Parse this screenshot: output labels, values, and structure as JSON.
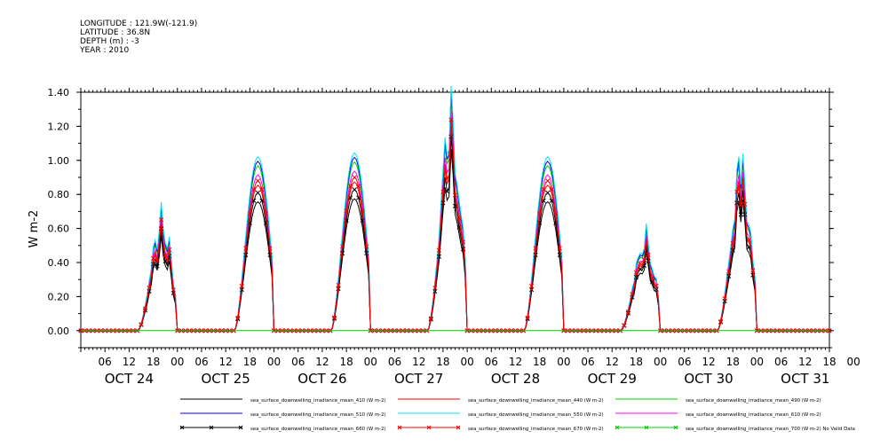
{
  "meta": {
    "longitude": "LONGITUDE : 121.9W(-121.9)",
    "latitude": "LATITUDE : 36.8N",
    "depth": "DEPTH (m) : -3",
    "year": "YEAR : 2010"
  },
  "chart_data": {
    "type": "line",
    "title": "",
    "xlabel": "",
    "ylabel": "W m-2",
    "ylim": [
      -0.1,
      1.4
    ],
    "xlim_hours": [
      0,
      186
    ],
    "y_ticks": [
      "0.00",
      "0.20",
      "0.40",
      "0.60",
      "0.80",
      "1.00",
      "1.20",
      "1.40"
    ],
    "y_tick_values": [
      0,
      0.2,
      0.4,
      0.6,
      0.8,
      1.0,
      1.2,
      1.4
    ],
    "x_hour_labels": [
      "06",
      "12",
      "18",
      "00",
      "06",
      "12",
      "18",
      "00",
      "06",
      "12",
      "18",
      "00",
      "06",
      "12",
      "18",
      "00",
      "06",
      "12",
      "18",
      "00",
      "06",
      "12",
      "18",
      "00",
      "06",
      "12",
      "18",
      "00",
      "06",
      "12",
      "18",
      "00"
    ],
    "x_day_labels": [
      "OCT 24",
      "OCT 25",
      "OCT 26",
      "OCT 27",
      "OCT 28",
      "OCT 29",
      "OCT 30",
      "OCT 31"
    ],
    "grid": false,
    "legend_position": "bottom",
    "daily_peaks": [
      {
        "day": "OCT 24",
        "peak": 0.62
      },
      {
        "day": "OCT 25",
        "peak": 0.88
      },
      {
        "day": "OCT 26",
        "peak": 0.9
      },
      {
        "day": "OCT 27",
        "peak": 1.2
      },
      {
        "day": "OCT 28",
        "peak": 0.88
      },
      {
        "day": "OCT 29",
        "peak": 0.53
      },
      {
        "day": "OCT 30",
        "peak": 0.9
      }
    ],
    "series": [
      {
        "name": "sea_surface_downwelling_irradiance_mean_410 (W m-2)",
        "color": "#000000",
        "scale": 0.86,
        "marker": ""
      },
      {
        "name": "sea_surface_downwelling_irradiance_mean_440 (W m-2)",
        "color": "#ff0000",
        "scale": 0.97,
        "marker": ""
      },
      {
        "name": "sea_surface_downwelling_irradiance_mean_490 (W m-2)",
        "color": "#00cc00",
        "scale": 1.1,
        "marker": ""
      },
      {
        "name": "sea_surface_downwelling_irradiance_mean_510 (W m-2)",
        "color": "#0000ff",
        "scale": 1.13,
        "marker": ""
      },
      {
        "name": "sea_surface_downwelling_irradiance_mean_550 (W m-2)",
        "color": "#00e5ee",
        "scale": 1.16,
        "marker": ""
      },
      {
        "name": "sea_surface_downwelling_irradiance_mean_610 (W m-2)",
        "color": "#ff00ff",
        "scale": 1.04,
        "marker": ""
      },
      {
        "name": "sea_surface_downwelling_irradiance_mean_660 (W m-2)",
        "color": "#000000",
        "scale": 0.92,
        "marker": "x"
      },
      {
        "name": "sea_surface_downwelling_irradiance_mean_670 (W m-2)",
        "color": "#ff0000",
        "scale": 1.0,
        "marker": "x"
      },
      {
        "name": "sea_surface_downwelling_irradiance_mean_700 (W m-2) No Valid Data",
        "color": "#00cc00",
        "scale": 0,
        "marker": "x"
      }
    ]
  }
}
